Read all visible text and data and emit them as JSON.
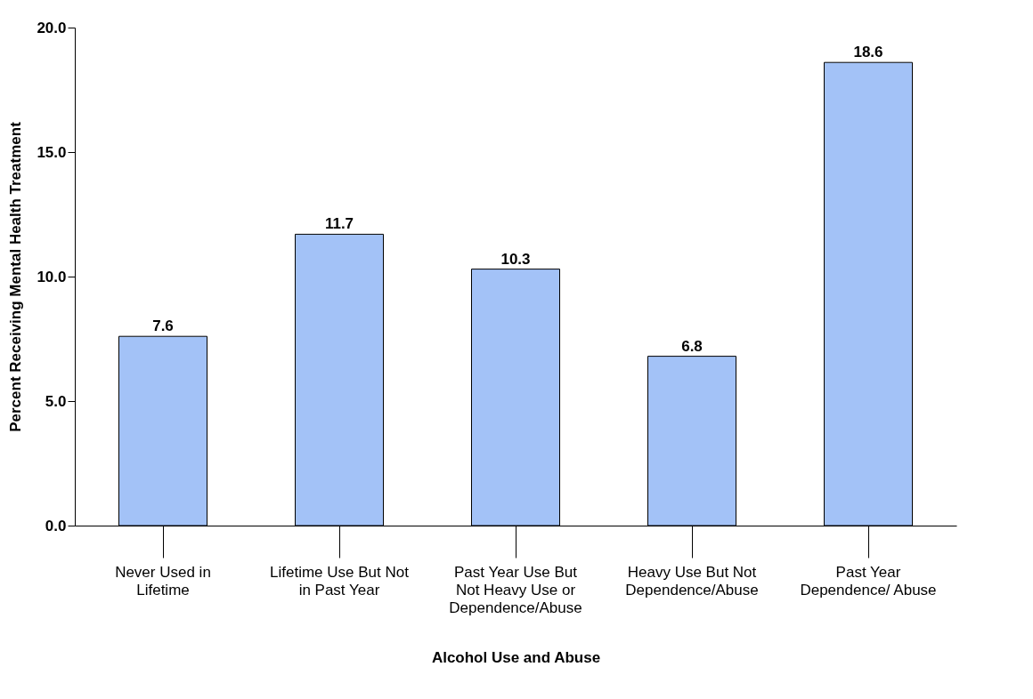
{
  "chart_data": {
    "type": "bar",
    "xlabel": "Alcohol Use and Abuse",
    "ylabel": "Percent Receiving Mental Health Treatment",
    "categories": [
      "Never Used in Lifetime",
      "Lifetime Use But Not in Past Year",
      "Past Year Use But Not Heavy Use or Dependence/Abuse",
      "Heavy Use But Not Dependence/Abuse",
      "Past Year Dependence/ Abuse"
    ],
    "values": [
      7.6,
      11.7,
      10.3,
      6.8,
      18.6
    ],
    "color": "#a3c2f7",
    "ylim": [
      0,
      20
    ],
    "yticks": [
      {
        "value": 0,
        "label": "0.0"
      },
      {
        "value": 5,
        "label": "5.0"
      },
      {
        "value": 10,
        "label": "10.0"
      },
      {
        "value": 15,
        "label": "15.0"
      },
      {
        "value": 20,
        "label": "20.0"
      }
    ],
    "data_labels": true,
    "grid": false
  }
}
